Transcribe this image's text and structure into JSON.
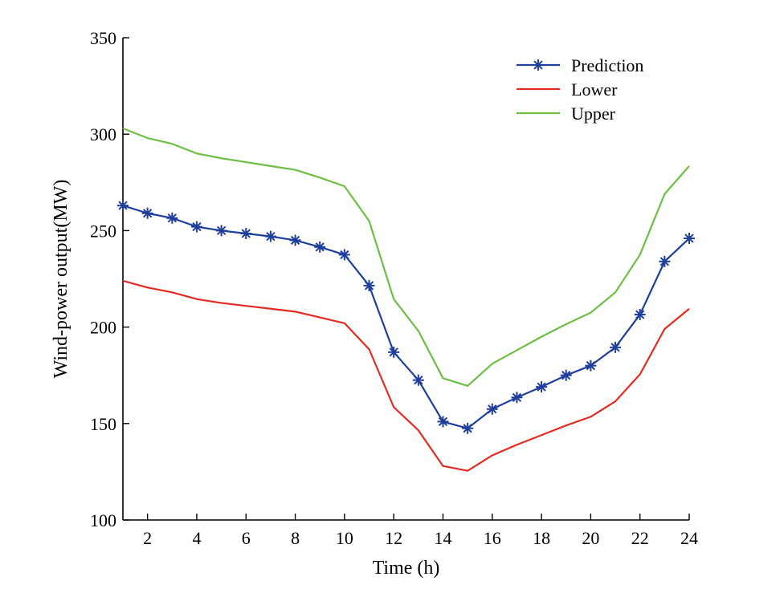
{
  "chart_data": {
    "type": "line",
    "xlabel": "Time (h)",
    "ylabel": "Wind-power output(MW)",
    "xlim": [
      1,
      24
    ],
    "ylim": [
      100,
      350
    ],
    "x_ticks": [
      2,
      4,
      6,
      8,
      10,
      12,
      14,
      16,
      18,
      20,
      22,
      24
    ],
    "y_ticks": [
      100,
      150,
      200,
      250,
      300,
      350
    ],
    "x": [
      1,
      2,
      3,
      4,
      5,
      6,
      7,
      8,
      9,
      10,
      11,
      12,
      13,
      14,
      15,
      16,
      17,
      18,
      19,
      20,
      21,
      22,
      23,
      24
    ],
    "grid": false,
    "legend_position": "top-right",
    "series": [
      {
        "name": "Prediction",
        "color": "#1f3f9c",
        "marker": "asterisk",
        "values": [
          263,
          259,
          256.5,
          252,
          250,
          248.5,
          247,
          245,
          241.5,
          237.5,
          221.5,
          187,
          172.5,
          151,
          147.5,
          157.5,
          163.5,
          169,
          175,
          180,
          189.5,
          206.5,
          234,
          246
        ]
      },
      {
        "name": "Lower",
        "color": "#e32b22",
        "marker": "none",
        "values": [
          224,
          220.5,
          218,
          214.5,
          212.5,
          211,
          209.5,
          208,
          205,
          202,
          188.5,
          158.5,
          146.5,
          128,
          125.5,
          133.5,
          139,
          144,
          149,
          153.5,
          161.5,
          175.5,
          199,
          209.5
        ]
      },
      {
        "name": "Upper",
        "color": "#6fbe44",
        "marker": "none",
        "values": [
          303,
          298,
          295,
          290,
          287.5,
          285.5,
          283.5,
          281.5,
          277.5,
          273,
          255,
          214.5,
          198,
          173.5,
          169.5,
          181,
          188,
          195,
          201.5,
          207.5,
          218,
          237.5,
          269,
          283.5
        ]
      }
    ]
  }
}
